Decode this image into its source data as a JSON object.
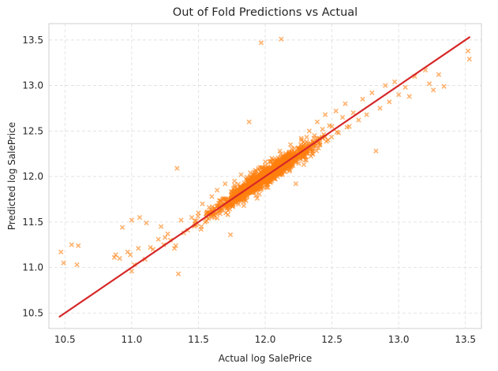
{
  "chart_data": {
    "type": "scatter",
    "title": "Out of Fold Predictions vs Actual",
    "xlabel": "Actual log SalePrice",
    "ylabel": "Predicted log SalePrice",
    "xlim": [
      10.38,
      13.62
    ],
    "ylim": [
      10.33,
      13.68
    ],
    "xticks": [
      "10.5",
      "11.0",
      "11.5",
      "12.0",
      "12.5",
      "13.0",
      "13.5"
    ],
    "yticks": [
      "10.5",
      "11.0",
      "11.5",
      "12.0",
      "12.5",
      "13.0",
      "13.5"
    ],
    "grid": true,
    "marker": "x",
    "point_color": "#ff7f0e",
    "line_color": "#d62728",
    "reference_line": {
      "x": [
        10.46,
        13.53
      ],
      "y": [
        10.46,
        13.53
      ]
    },
    "points": [
      [
        10.47,
        11.17
      ],
      [
        10.49,
        11.05
      ],
      [
        10.55,
        11.25
      ],
      [
        10.59,
        11.03
      ],
      [
        10.6,
        11.24
      ],
      [
        10.87,
        11.11
      ],
      [
        10.88,
        11.14
      ],
      [
        10.91,
        11.1
      ],
      [
        10.93,
        11.44
      ],
      [
        10.97,
        11.17
      ],
      [
        10.99,
        11.14
      ],
      [
        11.0,
        10.96
      ],
      [
        11.0,
        11.52
      ],
      [
        11.02,
        11.03
      ],
      [
        11.05,
        11.21
      ],
      [
        11.06,
        11.55
      ],
      [
        11.1,
        11.09
      ],
      [
        11.11,
        11.49
      ],
      [
        11.14,
        11.22
      ],
      [
        11.16,
        11.2
      ],
      [
        11.2,
        11.31
      ],
      [
        11.22,
        11.45
      ],
      [
        11.24,
        11.25
      ],
      [
        11.25,
        11.33
      ],
      [
        11.27,
        11.37
      ],
      [
        11.29,
        11.3
      ],
      [
        11.32,
        11.21
      ],
      [
        11.33,
        11.24
      ],
      [
        11.34,
        12.09
      ],
      [
        11.35,
        10.93
      ],
      [
        11.37,
        11.52
      ],
      [
        11.39,
        11.38
      ],
      [
        11.42,
        11.41
      ],
      [
        11.45,
        11.55
      ],
      [
        11.48,
        11.47
      ],
      [
        11.5,
        11.6
      ],
      [
        11.52,
        11.42
      ],
      [
        11.53,
        11.7
      ],
      [
        11.55,
        11.5
      ],
      [
        11.58,
        11.66
      ],
      [
        11.6,
        11.78
      ],
      [
        11.62,
        11.55
      ],
      [
        11.64,
        11.85
      ],
      [
        11.66,
        11.62
      ],
      [
        11.68,
        11.75
      ],
      [
        11.7,
        11.92
      ],
      [
        11.72,
        11.58
      ],
      [
        11.74,
        11.36
      ],
      [
        11.75,
        11.8
      ],
      [
        11.77,
        11.95
      ],
      [
        11.79,
        11.72
      ],
      [
        11.8,
        11.85
      ],
      [
        11.82,
        12.02
      ],
      [
        11.84,
        11.68
      ],
      [
        11.86,
        11.9
      ],
      [
        11.88,
        12.6
      ],
      [
        11.9,
        11.82
      ],
      [
        11.92,
        12.05
      ],
      [
        11.94,
        11.76
      ],
      [
        11.96,
        12.1
      ],
      [
        11.97,
        13.47
      ],
      [
        11.98,
        11.95
      ],
      [
        12.0,
        12.12
      ],
      [
        12.02,
        11.88
      ],
      [
        12.03,
        12.05
      ],
      [
        12.05,
        12.2
      ],
      [
        12.07,
        11.98
      ],
      [
        12.09,
        12.15
      ],
      [
        12.11,
        12.28
      ],
      [
        12.12,
        13.51
      ],
      [
        12.13,
        12.02
      ],
      [
        12.15,
        12.22
      ],
      [
        12.17,
        12.1
      ],
      [
        12.19,
        12.35
      ],
      [
        12.21,
        12.18
      ],
      [
        12.23,
        11.92
      ],
      [
        12.25,
        12.3
      ],
      [
        12.27,
        12.42
      ],
      [
        12.29,
        12.22
      ],
      [
        12.31,
        12.38
      ],
      [
        12.33,
        12.5
      ],
      [
        12.35,
        12.28
      ],
      [
        12.37,
        12.45
      ],
      [
        12.39,
        12.6
      ],
      [
        12.41,
        12.35
      ],
      [
        12.43,
        12.52
      ],
      [
        12.45,
        12.68
      ],
      [
        12.47,
        12.4
      ],
      [
        12.5,
        12.55
      ],
      [
        12.53,
        12.72
      ],
      [
        12.55,
        12.48
      ],
      [
        12.58,
        12.65
      ],
      [
        12.6,
        12.8
      ],
      [
        12.63,
        12.55
      ],
      [
        12.66,
        12.7
      ],
      [
        12.7,
        12.62
      ],
      [
        12.73,
        12.85
      ],
      [
        12.76,
        12.68
      ],
      [
        12.8,
        12.92
      ],
      [
        12.83,
        12.28
      ],
      [
        12.86,
        12.75
      ],
      [
        12.9,
        13.0
      ],
      [
        12.93,
        12.82
      ],
      [
        12.97,
        13.04
      ],
      [
        13.0,
        12.9
      ],
      [
        13.05,
        12.98
      ],
      [
        13.08,
        12.88
      ],
      [
        13.12,
        13.1
      ],
      [
        13.2,
        13.17
      ],
      [
        13.23,
        13.02
      ],
      [
        13.26,
        12.95
      ],
      [
        13.3,
        13.12
      ],
      [
        13.34,
        12.99
      ],
      [
        13.52,
        13.38
      ],
      [
        13.53,
        13.29
      ]
    ]
  }
}
